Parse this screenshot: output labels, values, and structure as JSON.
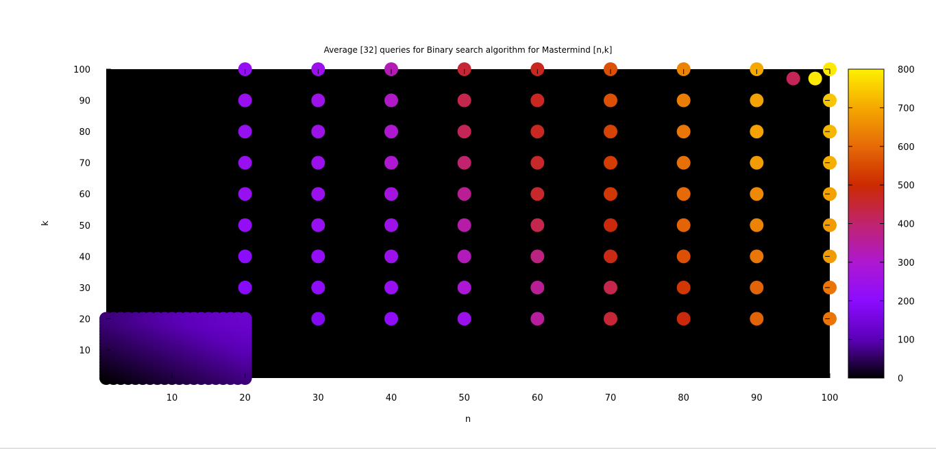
{
  "chart_data": {
    "type": "scatter",
    "title": "Average [32] queries for Binary search algorithm for Mastermind [n,k]",
    "xlabel": "n",
    "ylabel": "k",
    "xlim": [
      1,
      100
    ],
    "ylim": [
      1,
      100
    ],
    "x_ticks": [
      10,
      20,
      30,
      40,
      50,
      60,
      70,
      80,
      90,
      100
    ],
    "y_ticks": [
      10,
      20,
      30,
      40,
      50,
      60,
      70,
      80,
      90,
      100
    ],
    "background": "#000000",
    "colorbar": {
      "min": 0,
      "max": 800,
      "ticks": [
        0,
        100,
        200,
        300,
        400,
        500,
        600,
        700,
        800
      ],
      "palette": [
        "#000000",
        "#5c00b8",
        "#8c0cff",
        "#ae18d0",
        "#c0246c",
        "#cc2a00",
        "#e66a08",
        "#f4a800",
        "#fff000"
      ]
    },
    "dense_block": {
      "n_range": [
        1,
        20
      ],
      "k_range": [
        1,
        20
      ],
      "value_range": [
        0,
        130
      ]
    },
    "points": [
      {
        "n": 20,
        "k": 100,
        "v": 225
      },
      {
        "n": 30,
        "k": 100,
        "v": 240
      },
      {
        "n": 40,
        "k": 100,
        "v": 330
      },
      {
        "n": 50,
        "k": 100,
        "v": 450
      },
      {
        "n": 60,
        "k": 100,
        "v": 470
      },
      {
        "n": 70,
        "k": 100,
        "v": 560
      },
      {
        "n": 80,
        "k": 100,
        "v": 640
      },
      {
        "n": 90,
        "k": 100,
        "v": 700
      },
      {
        "n": 100,
        "k": 100,
        "v": 790
      },
      {
        "n": 95,
        "k": 97,
        "v": 420
      },
      {
        "n": 98,
        "k": 97,
        "v": 790
      },
      {
        "n": 20,
        "k": 90,
        "v": 235
      },
      {
        "n": 30,
        "k": 90,
        "v": 250
      },
      {
        "n": 40,
        "k": 90,
        "v": 310
      },
      {
        "n": 50,
        "k": 90,
        "v": 430
      },
      {
        "n": 60,
        "k": 90,
        "v": 470
      },
      {
        "n": 70,
        "k": 90,
        "v": 560
      },
      {
        "n": 80,
        "k": 90,
        "v": 630
      },
      {
        "n": 90,
        "k": 90,
        "v": 690
      },
      {
        "n": 100,
        "k": 90,
        "v": 740
      },
      {
        "n": 20,
        "k": 80,
        "v": 230
      },
      {
        "n": 30,
        "k": 80,
        "v": 250
      },
      {
        "n": 40,
        "k": 80,
        "v": 300
      },
      {
        "n": 50,
        "k": 80,
        "v": 420
      },
      {
        "n": 60,
        "k": 80,
        "v": 470
      },
      {
        "n": 70,
        "k": 80,
        "v": 540
      },
      {
        "n": 80,
        "k": 80,
        "v": 620
      },
      {
        "n": 90,
        "k": 80,
        "v": 690
      },
      {
        "n": 100,
        "k": 80,
        "v": 720
      },
      {
        "n": 20,
        "k": 70,
        "v": 235
      },
      {
        "n": 30,
        "k": 70,
        "v": 245
      },
      {
        "n": 40,
        "k": 70,
        "v": 300
      },
      {
        "n": 50,
        "k": 70,
        "v": 400
      },
      {
        "n": 60,
        "k": 70,
        "v": 460
      },
      {
        "n": 70,
        "k": 70,
        "v": 530
      },
      {
        "n": 80,
        "k": 70,
        "v": 610
      },
      {
        "n": 90,
        "k": 70,
        "v": 680
      },
      {
        "n": 100,
        "k": 70,
        "v": 710
      },
      {
        "n": 20,
        "k": 60,
        "v": 230
      },
      {
        "n": 30,
        "k": 60,
        "v": 240
      },
      {
        "n": 40,
        "k": 60,
        "v": 270
      },
      {
        "n": 50,
        "k": 60,
        "v": 360
      },
      {
        "n": 60,
        "k": 60,
        "v": 460
      },
      {
        "n": 70,
        "k": 60,
        "v": 520
      },
      {
        "n": 80,
        "k": 60,
        "v": 600
      },
      {
        "n": 90,
        "k": 60,
        "v": 650
      },
      {
        "n": 100,
        "k": 60,
        "v": 690
      },
      {
        "n": 20,
        "k": 50,
        "v": 220
      },
      {
        "n": 30,
        "k": 50,
        "v": 230
      },
      {
        "n": 40,
        "k": 50,
        "v": 250
      },
      {
        "n": 50,
        "k": 50,
        "v": 340
      },
      {
        "n": 60,
        "k": 50,
        "v": 430
      },
      {
        "n": 70,
        "k": 50,
        "v": 490
      },
      {
        "n": 80,
        "k": 50,
        "v": 590
      },
      {
        "n": 90,
        "k": 50,
        "v": 640
      },
      {
        "n": 100,
        "k": 50,
        "v": 680
      },
      {
        "n": 20,
        "k": 40,
        "v": 200
      },
      {
        "n": 30,
        "k": 40,
        "v": 220
      },
      {
        "n": 40,
        "k": 40,
        "v": 240
      },
      {
        "n": 50,
        "k": 40,
        "v": 320
      },
      {
        "n": 60,
        "k": 40,
        "v": 380
      },
      {
        "n": 70,
        "k": 40,
        "v": 480
      },
      {
        "n": 80,
        "k": 40,
        "v": 560
      },
      {
        "n": 90,
        "k": 40,
        "v": 620
      },
      {
        "n": 100,
        "k": 40,
        "v": 680
      },
      {
        "n": 20,
        "k": 30,
        "v": 190
      },
      {
        "n": 30,
        "k": 30,
        "v": 210
      },
      {
        "n": 40,
        "k": 30,
        "v": 230
      },
      {
        "n": 50,
        "k": 30,
        "v": 290
      },
      {
        "n": 60,
        "k": 30,
        "v": 360
      },
      {
        "n": 70,
        "k": 30,
        "v": 430
      },
      {
        "n": 80,
        "k": 30,
        "v": 520
      },
      {
        "n": 90,
        "k": 30,
        "v": 590
      },
      {
        "n": 100,
        "k": 30,
        "v": 620
      },
      {
        "n": 30,
        "k": 20,
        "v": 180
      },
      {
        "n": 40,
        "k": 20,
        "v": 210
      },
      {
        "n": 50,
        "k": 20,
        "v": 240
      },
      {
        "n": 60,
        "k": 20,
        "v": 350
      },
      {
        "n": 70,
        "k": 20,
        "v": 450
      },
      {
        "n": 80,
        "k": 20,
        "v": 490
      },
      {
        "n": 90,
        "k": 20,
        "v": 590
      },
      {
        "n": 100,
        "k": 20,
        "v": 620
      }
    ]
  }
}
